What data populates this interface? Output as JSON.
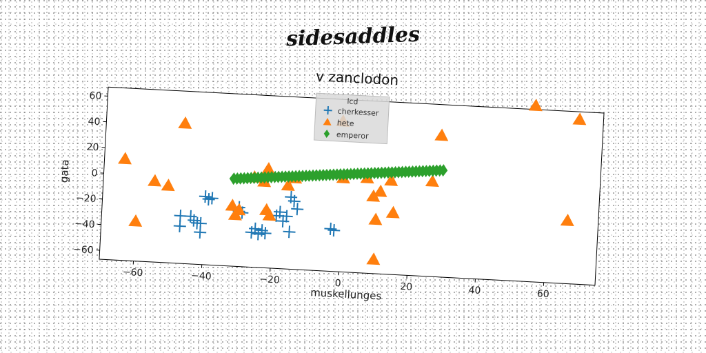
{
  "page": {
    "heading": "sidesaddles"
  },
  "chart_data": {
    "type": "scatter",
    "title": "v  zanclodon",
    "xlabel": "muskellunges",
    "ylabel": "gata",
    "xlim": [
      -70,
      75
    ],
    "ylim": [
      -67,
      67
    ],
    "x_ticks": [
      -60,
      -40,
      -20,
      0,
      20,
      40,
      60
    ],
    "y_ticks": [
      -60,
      -40,
      -20,
      0,
      20,
      40,
      60
    ],
    "grid": false,
    "legend": {
      "title": "lcd",
      "placement": "top-center"
    },
    "series": [
      {
        "name": "cherkesser",
        "marker": "plus",
        "color": "#1f77b4",
        "points": [
          [
            -47,
            -30
          ],
          [
            -47,
            -38
          ],
          [
            -44,
            -30
          ],
          [
            -43,
            -33
          ],
          [
            -42,
            -35
          ],
          [
            -41,
            -42
          ],
          [
            -41,
            -35
          ],
          [
            -40,
            -14
          ],
          [
            -39,
            -16
          ],
          [
            -38,
            -15
          ],
          [
            -30,
            -21
          ],
          [
            -30,
            -24
          ],
          [
            -29,
            -25
          ],
          [
            -26,
            -40
          ],
          [
            -25,
            -37
          ],
          [
            -24,
            -41
          ],
          [
            -23,
            -38
          ],
          [
            -22,
            -40
          ],
          [
            -19,
            -26
          ],
          [
            -18,
            -23
          ],
          [
            -17,
            -30
          ],
          [
            -16,
            -26
          ],
          [
            -15,
            -38
          ],
          [
            -15,
            -11
          ],
          [
            -14,
            -14
          ],
          [
            -13,
            -20
          ],
          [
            -3,
            -34
          ],
          [
            -2,
            -35
          ]
        ]
      },
      {
        "name": "hete",
        "marker": "triangle",
        "color": "#ff7f0e",
        "points": [
          [
            -64,
            12
          ],
          [
            -60,
            -36
          ],
          [
            -55,
            -4
          ],
          [
            -51,
            -7
          ],
          [
            -47,
            42
          ],
          [
            -32,
            -20
          ],
          [
            -31,
            -27
          ],
          [
            -30,
            -23
          ],
          [
            -26,
            3
          ],
          [
            -23,
            0
          ],
          [
            -22,
            10
          ],
          [
            -22,
            -22
          ],
          [
            -21,
            -26
          ],
          [
            -16,
            -2
          ],
          [
            -14,
            4
          ],
          [
            -1,
            50
          ],
          [
            0,
            6
          ],
          [
            7,
            7
          ],
          [
            9,
            -7
          ],
          [
            10,
            -56
          ],
          [
            10,
            -25
          ],
          [
            11,
            -3
          ],
          [
            14,
            6
          ],
          [
            15,
            -19
          ],
          [
            26,
            7
          ],
          [
            28,
            43
          ],
          [
            55,
            70
          ],
          [
            66,
            -18
          ],
          [
            68,
            61
          ]
        ]
      },
      {
        "name": "emperor",
        "marker": "diamond",
        "color": "#2ca02c",
        "x_start": -32,
        "x_end": 29,
        "y_start": 1,
        "y_end": 16,
        "count": 62
      }
    ]
  }
}
